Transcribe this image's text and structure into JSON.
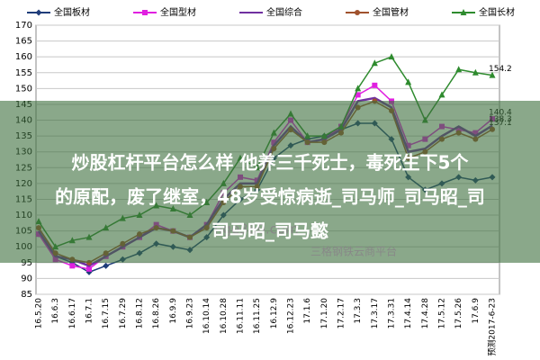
{
  "chart_data": {
    "type": "line",
    "categories": [
      "16.5.20",
      "16.6.3",
      "16.6.17",
      "16.7.1",
      "16.7.15",
      "16.7.29",
      "16.8.12",
      "16.8.26",
      "16.9.9",
      "16.9.23",
      "16.10.14",
      "16.10.28",
      "16.11.11",
      "16.11.25",
      "16.12.9",
      "16.12.23",
      "17.1.6",
      "17.1.20",
      "17.2.17",
      "17.3.3",
      "17.3.17",
      "17.3.31",
      "17.4.14",
      "17.4.28",
      "17.5.12",
      "17.5.26",
      "17.6.9",
      "预测2017-6-23"
    ],
    "series": [
      {
        "name": "全国板材",
        "color": "#1f3d7a",
        "marker": "diamond",
        "values": [
          104,
          97,
          95,
          92,
          94,
          96,
          98,
          101,
          100,
          99,
          103,
          110,
          115,
          118,
          128,
          132,
          134,
          135,
          137,
          139,
          139,
          134,
          122,
          118,
          120,
          122,
          121,
          122
        ]
      },
      {
        "name": "全国型材",
        "color": "#e020e0",
        "marker": "square",
        "values": [
          104,
          96,
          94,
          93,
          97,
          100,
          103,
          107,
          105,
          103,
          107,
          117,
          122,
          121,
          133,
          140,
          133,
          134,
          138,
          148,
          151,
          146,
          132,
          134,
          138,
          137,
          136,
          140.4
        ]
      },
      {
        "name": "全国综合",
        "color": "#7030a0",
        "marker": "none",
        "values": [
          105,
          97,
          96,
          94,
          97,
          100,
          103,
          106,
          105,
          103,
          107,
          115,
          120,
          120,
          132,
          138,
          133,
          134,
          137,
          146,
          147,
          144,
          130,
          131,
          135,
          138,
          135,
          138.3
        ]
      },
      {
        "name": "全国管材",
        "color": "#a0522d",
        "marker": "circle",
        "values": [
          106,
          98,
          96,
          95,
          98,
          101,
          104,
          106,
          105,
          103,
          106,
          114,
          119,
          119,
          131,
          137,
          133,
          133,
          136,
          144,
          146,
          143,
          128,
          130,
          134,
          136,
          134,
          137.1
        ]
      },
      {
        "name": "全国长材",
        "color": "#2e8b2e",
        "marker": "triangle",
        "values": [
          108,
          100,
          102,
          103,
          106,
          109,
          110,
          113,
          112,
          110,
          114,
          120,
          128,
          125,
          136,
          142,
          135,
          135,
          138,
          150,
          158,
          160,
          152,
          140,
          148,
          156,
          155,
          154.2
        ]
      }
    ],
    "ylim": [
      85,
      170
    ],
    "yticks": [
      85,
      90,
      95,
      100,
      105,
      110,
      115,
      120,
      125,
      130,
      135,
      140,
      145,
      150,
      155,
      160,
      165,
      170
    ],
    "grid": true
  },
  "overlay": {
    "headline": [
      "炒股杠杆平台怎么样 他养三千死士，毒死生下5个",
      "的原配，废了继室，48岁受惊病逝_司马师_司马昭_司",
      "司马昭_司马懿"
    ],
    "watermark": [
      "nge360.com",
      "三格钢铁云商平台"
    ]
  }
}
